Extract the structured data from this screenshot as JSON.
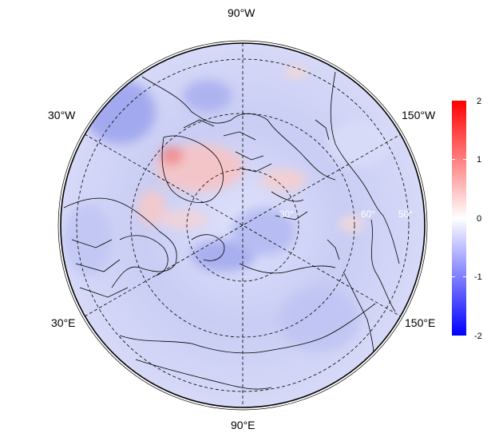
{
  "map": {
    "projection": "north polar stereographic",
    "lon_labels": {
      "top": "90°W",
      "upper_left": "30°W",
      "upper_right": "150°W",
      "lower_left": "30°E",
      "lower_right": "150°E",
      "bottom": "90°E"
    },
    "lat_labels": [
      "30°",
      "60°",
      "50°"
    ],
    "grid": "dashed"
  },
  "colorbar": {
    "ticks": [
      "2",
      "1",
      "0",
      "-1",
      "-2"
    ],
    "range": [
      -2,
      2
    ],
    "colors": {
      "low": "#0000ff",
      "mid": "#ffffff",
      "high": "#ff0000"
    }
  }
}
